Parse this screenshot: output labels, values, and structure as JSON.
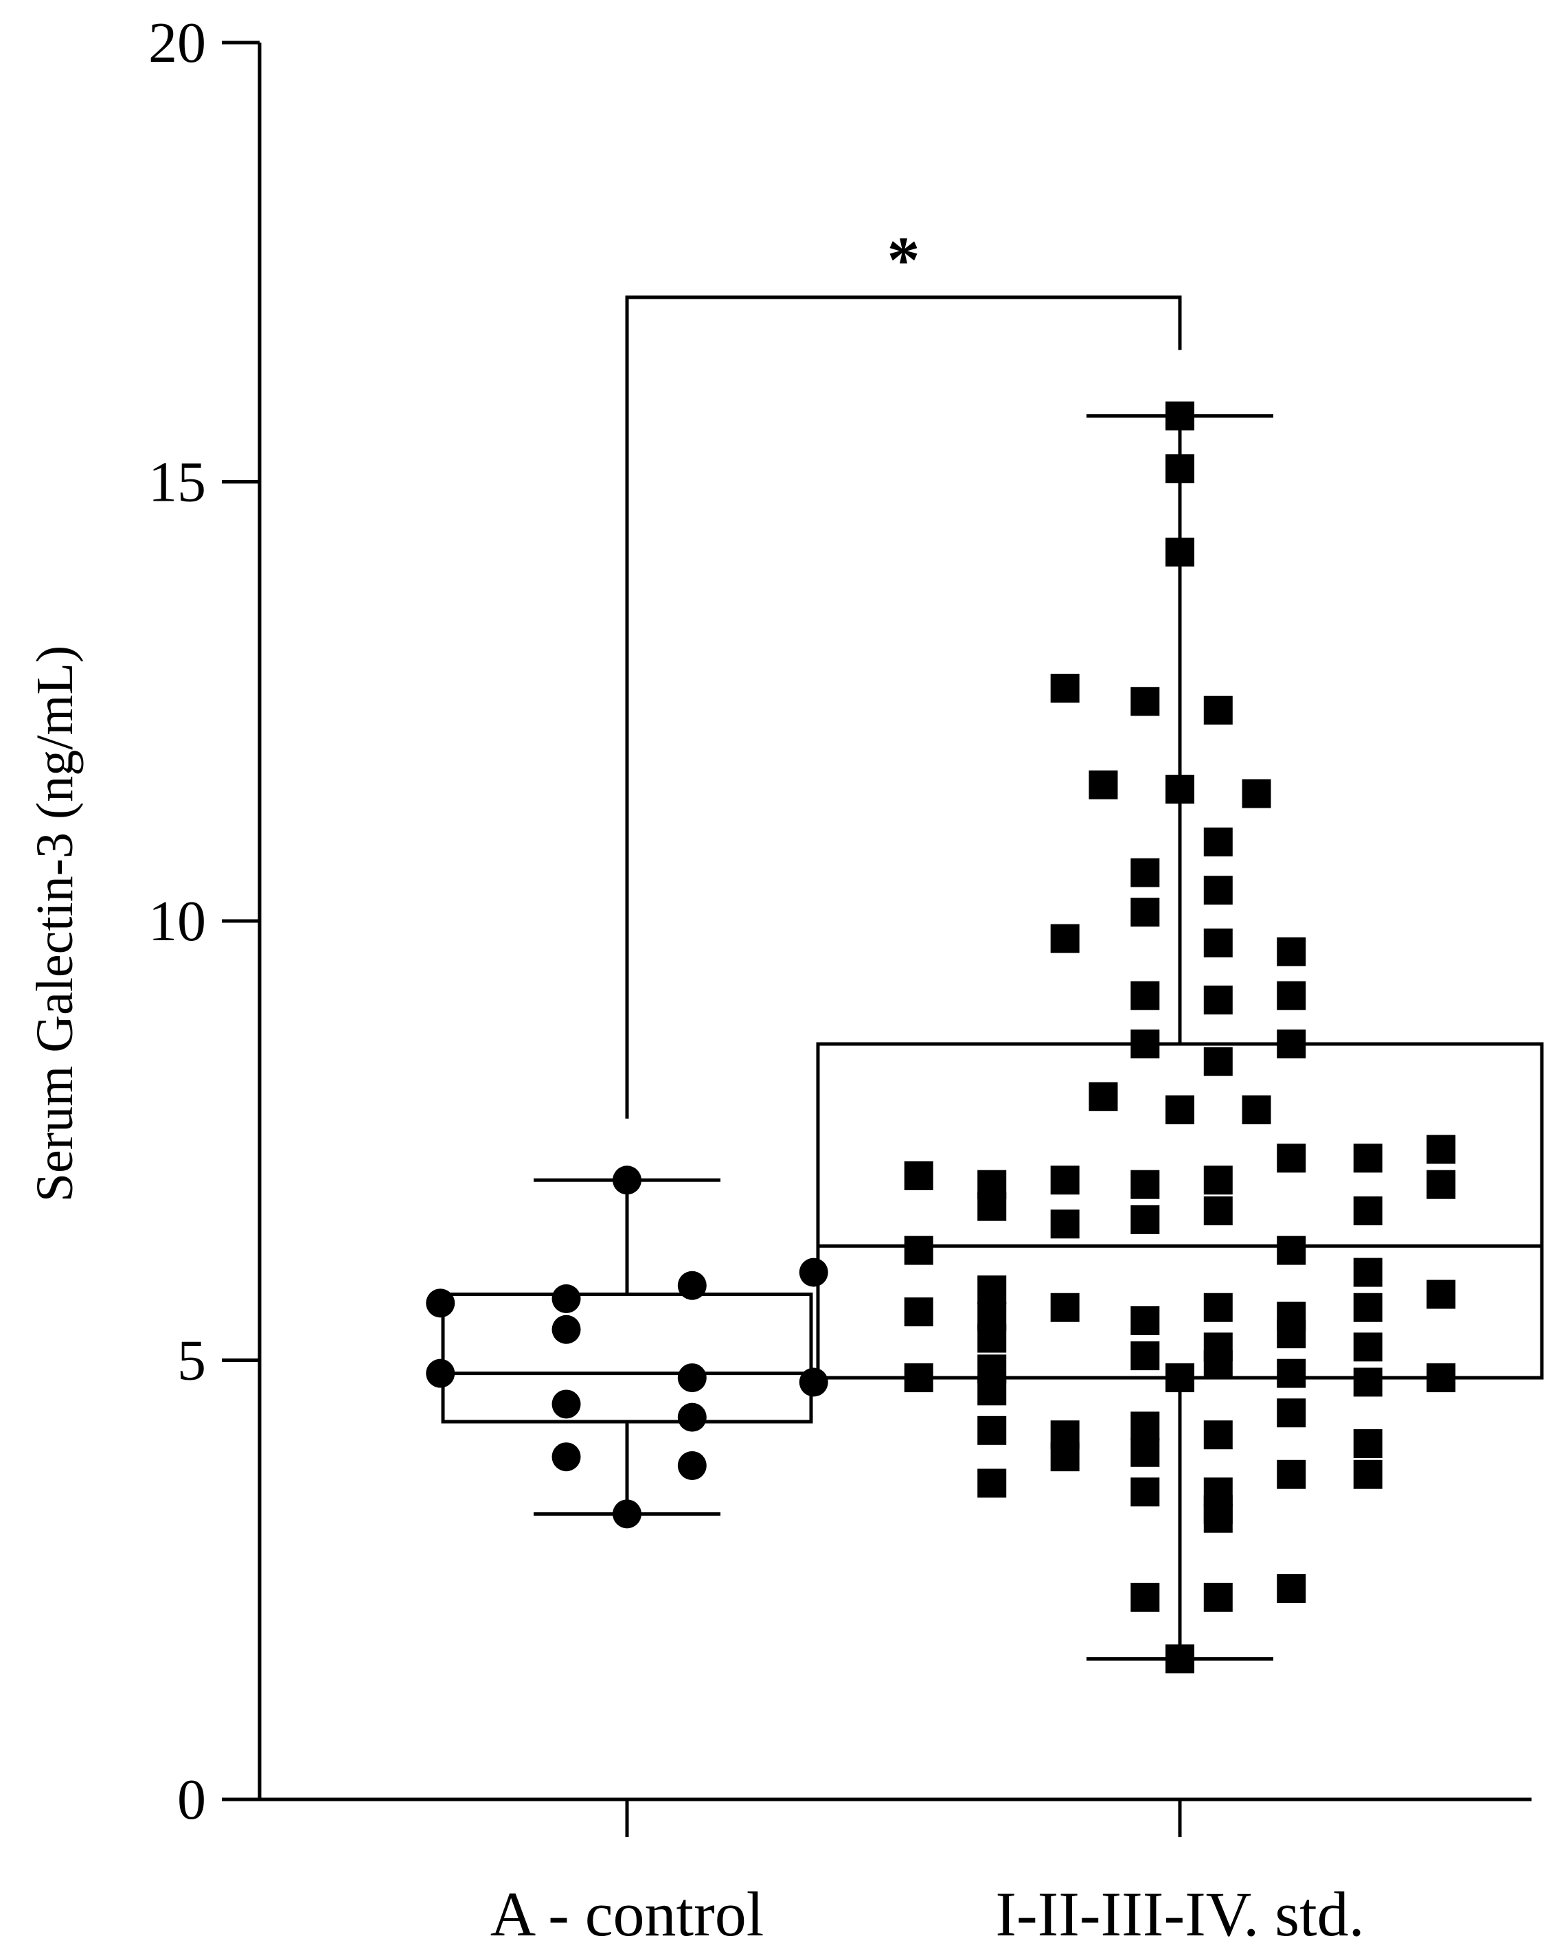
{
  "chart_data": {
    "type": "box",
    "title": "",
    "xlabel": "",
    "ylabel": "Serum Galectin-3 (ng/mL)",
    "ylim": [
      0,
      20
    ],
    "yticks": [
      "0",
      "5",
      "10",
      "15",
      "20"
    ],
    "grid": false,
    "legend": "none",
    "categories": [
      "A - control",
      "I-II-III-IV. std."
    ],
    "significance": {
      "between": [
        0,
        1
      ],
      "label": "*"
    },
    "series": [
      {
        "category": "A - control",
        "marker": "circle",
        "box": {
          "whisker_low": 3.25,
          "q1": 4.3,
          "median": 4.85,
          "q3": 5.75,
          "whisker_high": 7.05
        },
        "points": [
          [
            0.0,
            7.05
          ],
          [
            -0.43,
            5.65
          ],
          [
            -0.14,
            5.7
          ],
          [
            0.15,
            5.85
          ],
          [
            0.43,
            6.0
          ],
          [
            -0.14,
            5.35
          ],
          [
            -0.43,
            4.85
          ],
          [
            0.15,
            4.8
          ],
          [
            0.43,
            4.75
          ],
          [
            -0.14,
            4.5
          ],
          [
            0.15,
            4.35
          ],
          [
            -0.14,
            3.9
          ],
          [
            0.15,
            3.8
          ],
          [
            0.0,
            3.25
          ]
        ]
      },
      {
        "category": "I-II-III-IV. std.",
        "marker": "square",
        "box": {
          "whisker_low": 1.6,
          "q1": 4.8,
          "median": 6.3,
          "q3": 8.6,
          "whisker_high": 15.75
        },
        "points": [
          [
            0.0,
            15.75
          ],
          [
            0.0,
            15.15
          ],
          [
            0.0,
            14.2
          ],
          [
            -0.33,
            12.65
          ],
          [
            -0.1,
            12.5
          ],
          [
            0.11,
            12.4
          ],
          [
            -0.22,
            11.55
          ],
          [
            0.0,
            11.5
          ],
          [
            0.22,
            11.45
          ],
          [
            0.11,
            10.9
          ],
          [
            -0.1,
            10.55
          ],
          [
            0.11,
            10.35
          ],
          [
            -0.1,
            10.1
          ],
          [
            -0.33,
            9.8
          ],
          [
            0.11,
            9.75
          ],
          [
            0.32,
            9.65
          ],
          [
            -0.1,
            9.15
          ],
          [
            0.11,
            9.1
          ],
          [
            0.32,
            9.15
          ],
          [
            -0.1,
            8.6
          ],
          [
            0.32,
            8.6
          ],
          [
            0.11,
            8.4
          ],
          [
            -0.22,
            8.0
          ],
          [
            0.0,
            7.85
          ],
          [
            0.22,
            7.85
          ],
          [
            0.32,
            7.3
          ],
          [
            0.54,
            7.3
          ],
          [
            0.75,
            7.4
          ],
          [
            0.75,
            7.0
          ],
          [
            -0.75,
            7.1
          ],
          [
            -0.54,
            7.0
          ],
          [
            -0.33,
            7.05
          ],
          [
            -0.1,
            7.0
          ],
          [
            0.11,
            7.05
          ],
          [
            -0.54,
            6.75
          ],
          [
            -0.33,
            6.55
          ],
          [
            -0.1,
            6.6
          ],
          [
            0.11,
            6.7
          ],
          [
            0.54,
            6.7
          ],
          [
            -0.75,
            6.25
          ],
          [
            0.32,
            6.25
          ],
          [
            0.54,
            6.0
          ],
          [
            -0.54,
            5.8
          ],
          [
            0.75,
            5.75
          ],
          [
            -0.54,
            5.5
          ],
          [
            -0.33,
            5.6
          ],
          [
            0.11,
            5.6
          ],
          [
            0.32,
            5.5
          ],
          [
            0.54,
            5.6
          ],
          [
            -0.75,
            5.55
          ],
          [
            -0.1,
            5.45
          ],
          [
            0.32,
            5.3
          ],
          [
            -0.54,
            5.25
          ],
          [
            0.11,
            5.15
          ],
          [
            0.54,
            5.15
          ],
          [
            -0.1,
            5.05
          ],
          [
            -0.54,
            4.9
          ],
          [
            0.11,
            4.95
          ],
          [
            0.32,
            4.85
          ],
          [
            -0.75,
            4.8
          ],
          [
            0.0,
            4.8
          ],
          [
            0.54,
            4.75
          ],
          [
            0.75,
            4.8
          ],
          [
            -0.54,
            4.65
          ],
          [
            -0.1,
            4.25
          ],
          [
            0.32,
            4.4
          ],
          [
            -0.54,
            4.2
          ],
          [
            -0.33,
            4.15
          ],
          [
            0.11,
            4.15
          ],
          [
            0.54,
            4.05
          ],
          [
            -0.33,
            3.9
          ],
          [
            -0.1,
            3.95
          ],
          [
            0.54,
            3.7
          ],
          [
            -0.54,
            3.6
          ],
          [
            -0.1,
            3.5
          ],
          [
            0.11,
            3.5
          ],
          [
            0.32,
            3.7
          ],
          [
            0.11,
            3.3
          ],
          [
            0.11,
            3.2
          ],
          [
            -0.1,
            2.3
          ],
          [
            0.11,
            2.3
          ],
          [
            0.32,
            2.4
          ],
          [
            0.0,
            1.6
          ]
        ]
      }
    ]
  }
}
